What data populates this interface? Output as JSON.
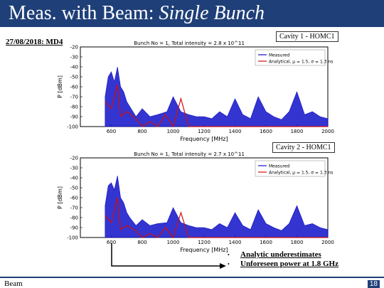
{
  "slide": {
    "title_normal": "Meas. with Beam: ",
    "title_italic": "Single Bunch",
    "date": "27/08/2018: MD4",
    "footer_left": "Beam",
    "page_number": "18",
    "bullets": [
      "Analytic underestimates",
      "Unforeseen power at 1.8 GHz"
    ]
  },
  "chart_data": [
    {
      "type": "line",
      "label": "Cavity 1 - HOMC1",
      "title": "Bunch No = 1, Total intensity = 2.8 x 10^11",
      "xlabel": "Frequency [MHz]",
      "ylabel": "P [dBm]",
      "xlim": [
        400,
        2000
      ],
      "ylim": [
        -100,
        -20
      ],
      "xticks": [
        "600",
        "800",
        "1000",
        "1200",
        "1400",
        "1600",
        "1800",
        "2000"
      ],
      "yticks": [
        "-20",
        "-30",
        "-40",
        "-50",
        "-60",
        "-70",
        "-80",
        "-90",
        "-100"
      ],
      "legend": [
        "Measured",
        "Analytical, μ = 1.5, σ = 1.3 ns"
      ],
      "legend_position": "top-right",
      "series": [
        {
          "name": "Measured",
          "color": "#1010c8",
          "x": [
            560,
            580,
            600,
            620,
            640,
            660,
            680,
            700,
            720,
            760,
            800,
            850,
            900,
            960,
            1000,
            1050,
            1100,
            1150,
            1200,
            1250,
            1300,
            1350,
            1400,
            1450,
            1500,
            1550,
            1600,
            1650,
            1700,
            1750,
            1800,
            1850,
            1900,
            1950,
            2000
          ],
          "y": [
            -70,
            -50,
            -45,
            -55,
            -40,
            -60,
            -65,
            -75,
            -80,
            -90,
            -82,
            -90,
            -88,
            -85,
            -70,
            -85,
            -88,
            -90,
            -90,
            -92,
            -85,
            -90,
            -72,
            -88,
            -92,
            -70,
            -85,
            -90,
            -93,
            -85,
            -65,
            -88,
            -85,
            -90,
            -92
          ]
        },
        {
          "name": "Analytical, μ = 1.5, σ = 1.3 ns",
          "color": "#d01010",
          "x": [
            560,
            600,
            640,
            660,
            700,
            760,
            800,
            850,
            900,
            950,
            1000,
            1050,
            1100,
            1150,
            1200,
            1300,
            1400,
            1500,
            1600,
            1700,
            1800,
            1900,
            2000
          ],
          "y": [
            -75,
            -82,
            -58,
            -90,
            -85,
            -92,
            -100,
            -95,
            -100,
            -88,
            -100,
            -72,
            -100,
            -100,
            -100,
            -100,
            -100,
            -100,
            -100,
            -100,
            -100,
            -100,
            -100
          ]
        }
      ]
    },
    {
      "type": "line",
      "label": "Cavity 2 - HOMC1",
      "title": "Bunch No = 1, Total intensity = 2.7 x 10^11",
      "xlabel": "Frequency [MHz]",
      "ylabel": "P [dBm]",
      "xlim": [
        400,
        2000
      ],
      "ylim": [
        -100,
        -20
      ],
      "xticks": [
        "600",
        "800",
        "1000",
        "1200",
        "1400",
        "1600",
        "1800",
        "2000"
      ],
      "yticks": [
        "-20",
        "-30",
        "-40",
        "-50",
        "-60",
        "-70",
        "-80",
        "-90",
        "-100"
      ],
      "legend": [
        "Measured",
        "Analytical, μ = 1.5, σ = 1.3 ns"
      ],
      "legend_position": "top-right",
      "series": [
        {
          "name": "Measured",
          "color": "#1010c8",
          "x": [
            560,
            580,
            600,
            620,
            640,
            660,
            680,
            700,
            720,
            760,
            800,
            850,
            900,
            960,
            1000,
            1050,
            1100,
            1150,
            1200,
            1250,
            1300,
            1350,
            1400,
            1450,
            1500,
            1550,
            1600,
            1650,
            1700,
            1750,
            1800,
            1850,
            1900,
            1950,
            2000
          ],
          "y": [
            -68,
            -48,
            -45,
            -52,
            -38,
            -60,
            -65,
            -75,
            -80,
            -88,
            -82,
            -88,
            -86,
            -85,
            -70,
            -85,
            -88,
            -90,
            -90,
            -92,
            -86,
            -90,
            -75,
            -88,
            -92,
            -72,
            -86,
            -90,
            -93,
            -86,
            -68,
            -88,
            -86,
            -90,
            -92
          ]
        },
        {
          "name": "Analytical, μ = 1.5, σ = 1.3 ns",
          "color": "#d01010",
          "x": [
            560,
            600,
            640,
            660,
            700,
            760,
            800,
            850,
            900,
            950,
            1000,
            1050,
            1100,
            1150,
            1200,
            1300,
            1400,
            1500,
            1600,
            1700,
            1800,
            1900,
            2000
          ],
          "y": [
            -78,
            -85,
            -60,
            -92,
            -88,
            -93,
            -100,
            -96,
            -100,
            -90,
            -100,
            -75,
            -100,
            -100,
            -100,
            -100,
            -100,
            -100,
            -100,
            -100,
            -100,
            -100,
            -100
          ]
        }
      ]
    }
  ]
}
